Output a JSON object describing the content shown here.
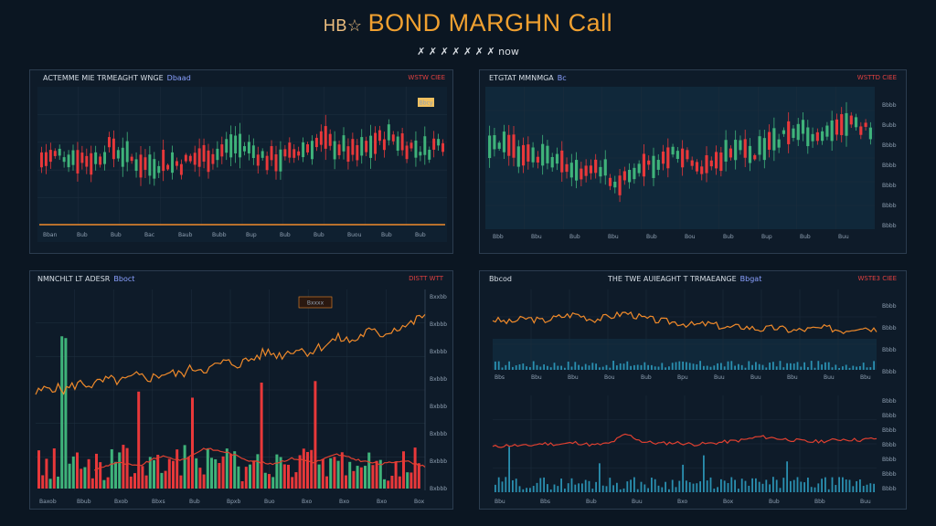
{
  "header": {
    "prefix": "HB☆",
    "title": "BOND MARGHN Call",
    "subtitle": "✗ ✗ ✗ ✗ ✗ ✗ ✗ now"
  },
  "colors": {
    "up": "#3fb37a",
    "down": "#e8383a",
    "orange": "#f08a2a",
    "red_line": "#e04030",
    "teal_bar": "#2a8fb0",
    "grid": "#1c2c3c"
  },
  "panels": [
    {
      "title": "ACTEMME MIE TRMEAGHT WNGE",
      "tag": "Dbaad",
      "red_tag": "WSTW CIEE"
    },
    {
      "title": "ETGTAT MMNMGA",
      "tag": "Bc",
      "red_tag": "WSTTD CIEE"
    },
    {
      "title": "NMNCHLT LT ADESR",
      "tag": "Bboct",
      "red_tag": "DISTT WTT"
    },
    {
      "title": "THE TWE AUIEAGHT T TRMAEANGE",
      "tag": "Bbgat",
      "red_tag": "WSTE3 CIEE",
      "tag2": "Bbcod"
    }
  ],
  "chart_data": [
    {
      "type": "candlestick",
      "panel": "top-left",
      "title": "ACTEMME MIE TRMEAGHT WNGE",
      "x_ticks": [
        "Bban",
        "Bub",
        "Bub",
        "Bac",
        "Baub",
        "Bubb",
        "Bup",
        "Bub",
        "Bub",
        "Buou",
        "Bub",
        "Bub"
      ],
      "candle_count": 90,
      "trend": [
        48,
        52,
        50,
        47,
        58,
        49,
        44,
        46,
        45,
        50,
        52,
        60,
        55,
        48,
        50,
        56,
        62,
        58,
        52,
        60,
        66,
        58,
        55,
        62
      ],
      "baseline_color": "#f08a2a",
      "annotation": "Bbcy"
    },
    {
      "type": "candlestick",
      "panel": "top-right",
      "title": "ETGTAT MMNMGA",
      "x_ticks": [
        "Bbb",
        "Bbu",
        "Bub",
        "Bbu",
        "Bub",
        "Bou",
        "Bub",
        "Bup",
        "Bub",
        "Buu"
      ],
      "y_ticks": [
        "Bbbb",
        "Bubb",
        "Bbbb",
        "Bbbb",
        "Bbbb",
        "Bbbb",
        "Bbbb"
      ],
      "candle_count": 80,
      "trend": [
        62,
        58,
        50,
        54,
        46,
        40,
        44,
        38,
        32,
        40,
        46,
        54,
        50,
        44,
        52,
        58,
        54,
        62,
        66,
        70,
        64,
        72,
        76,
        70
      ]
    },
    {
      "type": "line+bar",
      "panel": "bottom-left",
      "title": "NMNCHLT LT ADESR",
      "x_ticks": [
        "Baxob",
        "Bbub",
        "Bxob",
        "Bbxs",
        "Bub",
        "Bpxb",
        "Buo",
        "Bxo",
        "Bxo",
        "Bxo",
        "Box"
      ],
      "y_ticks": [
        "Bxxbb",
        "Bxbbb",
        "Bxbbb",
        "Bxbbb",
        "Bxbbb",
        "Bxbbb",
        "Bxbbb",
        "Bxbbb"
      ],
      "line": [
        40,
        44,
        42,
        46,
        45,
        48,
        47,
        50,
        49,
        52,
        51,
        55,
        54,
        58,
        57,
        60,
        64,
        62,
        66,
        64,
        68,
        72,
        70,
        76,
        74,
        78,
        80,
        86
      ],
      "annotation": "Bxxxx"
    },
    {
      "type": "line+bar",
      "panel": "bottom-right",
      "title": "THE TWE AUIEAGHT T TRMAEANGE",
      "upper_line": [
        62,
        58,
        64,
        60,
        66,
        70,
        62,
        66,
        72,
        64,
        60,
        58,
        54,
        56,
        50,
        52,
        48,
        50,
        46,
        48,
        50,
        46,
        52,
        48
      ],
      "lower_line": [
        40,
        42,
        41,
        44,
        43,
        45,
        42,
        44,
        55,
        46,
        44,
        45,
        43,
        44,
        46,
        48,
        52,
        50,
        48,
        46,
        47,
        49,
        48,
        50
      ],
      "upper_x_ticks": [
        "Bbs",
        "Bbu",
        "Bbu",
        "Bou",
        "Bub",
        "Bpu",
        "Buu",
        "Buu",
        "Bbu",
        "Buu",
        "Bbu"
      ],
      "lower_x_ticks": [
        "Bbu",
        "Bbs",
        "Bub",
        "Buu",
        "Bxo",
        "Box",
        "Bub",
        "Bbb",
        "Buu"
      ],
      "upper_y_ticks": [
        "Bbbb",
        "Bbbb",
        "Bbbb",
        "Bbbb"
      ],
      "lower_y_ticks": [
        "Bbbb",
        "Bbbb",
        "Bbbb",
        "Bbbb",
        "Bbbb",
        "Bbbb",
        "Bbbb"
      ]
    }
  ]
}
